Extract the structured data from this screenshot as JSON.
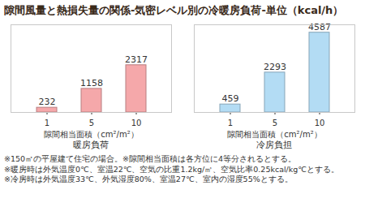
{
  "title": "隙間風量と熱損失量の関係-気密レベル別の冷暖房負荷-単位（kcal/h）",
  "notes": [
    "※150㎡の平屋建て住宅の場合。※隙間相当面積は各方位に4等分されるとする。",
    "※暖房時は外気温度0℃、室温22℃、空気の比重1.2kg/㎥、空気比率0.25kcal/kg℃とする。",
    "※冷房時は外気温度33℃、外気湿度80%、室温27℃、室内の湿度55%とする。"
  ],
  "chart_data": [
    {
      "type": "bar",
      "title": "暖房負荷",
      "xlabel": "隙間相当面積（cm²/m²）",
      "categories": [
        "1",
        "5",
        "10"
      ],
      "values": [
        232,
        1158,
        2317
      ],
      "color": "#f5a8aa",
      "ylim": [
        0,
        4300
      ],
      "yticks": [],
      "data_labels": true,
      "tick_labels": "x"
    },
    {
      "type": "bar",
      "title": "冷房負担",
      "xlabel": "隙間相当面積（cm²/m²）",
      "categories": [
        "1",
        "5",
        "10"
      ],
      "values": [
        459,
        2293,
        4587
      ],
      "color": "#b3dcf4",
      "ylim": [
        0,
        5040
      ],
      "yticks": [],
      "data_labels": true,
      "tick_labels": "x"
    }
  ]
}
